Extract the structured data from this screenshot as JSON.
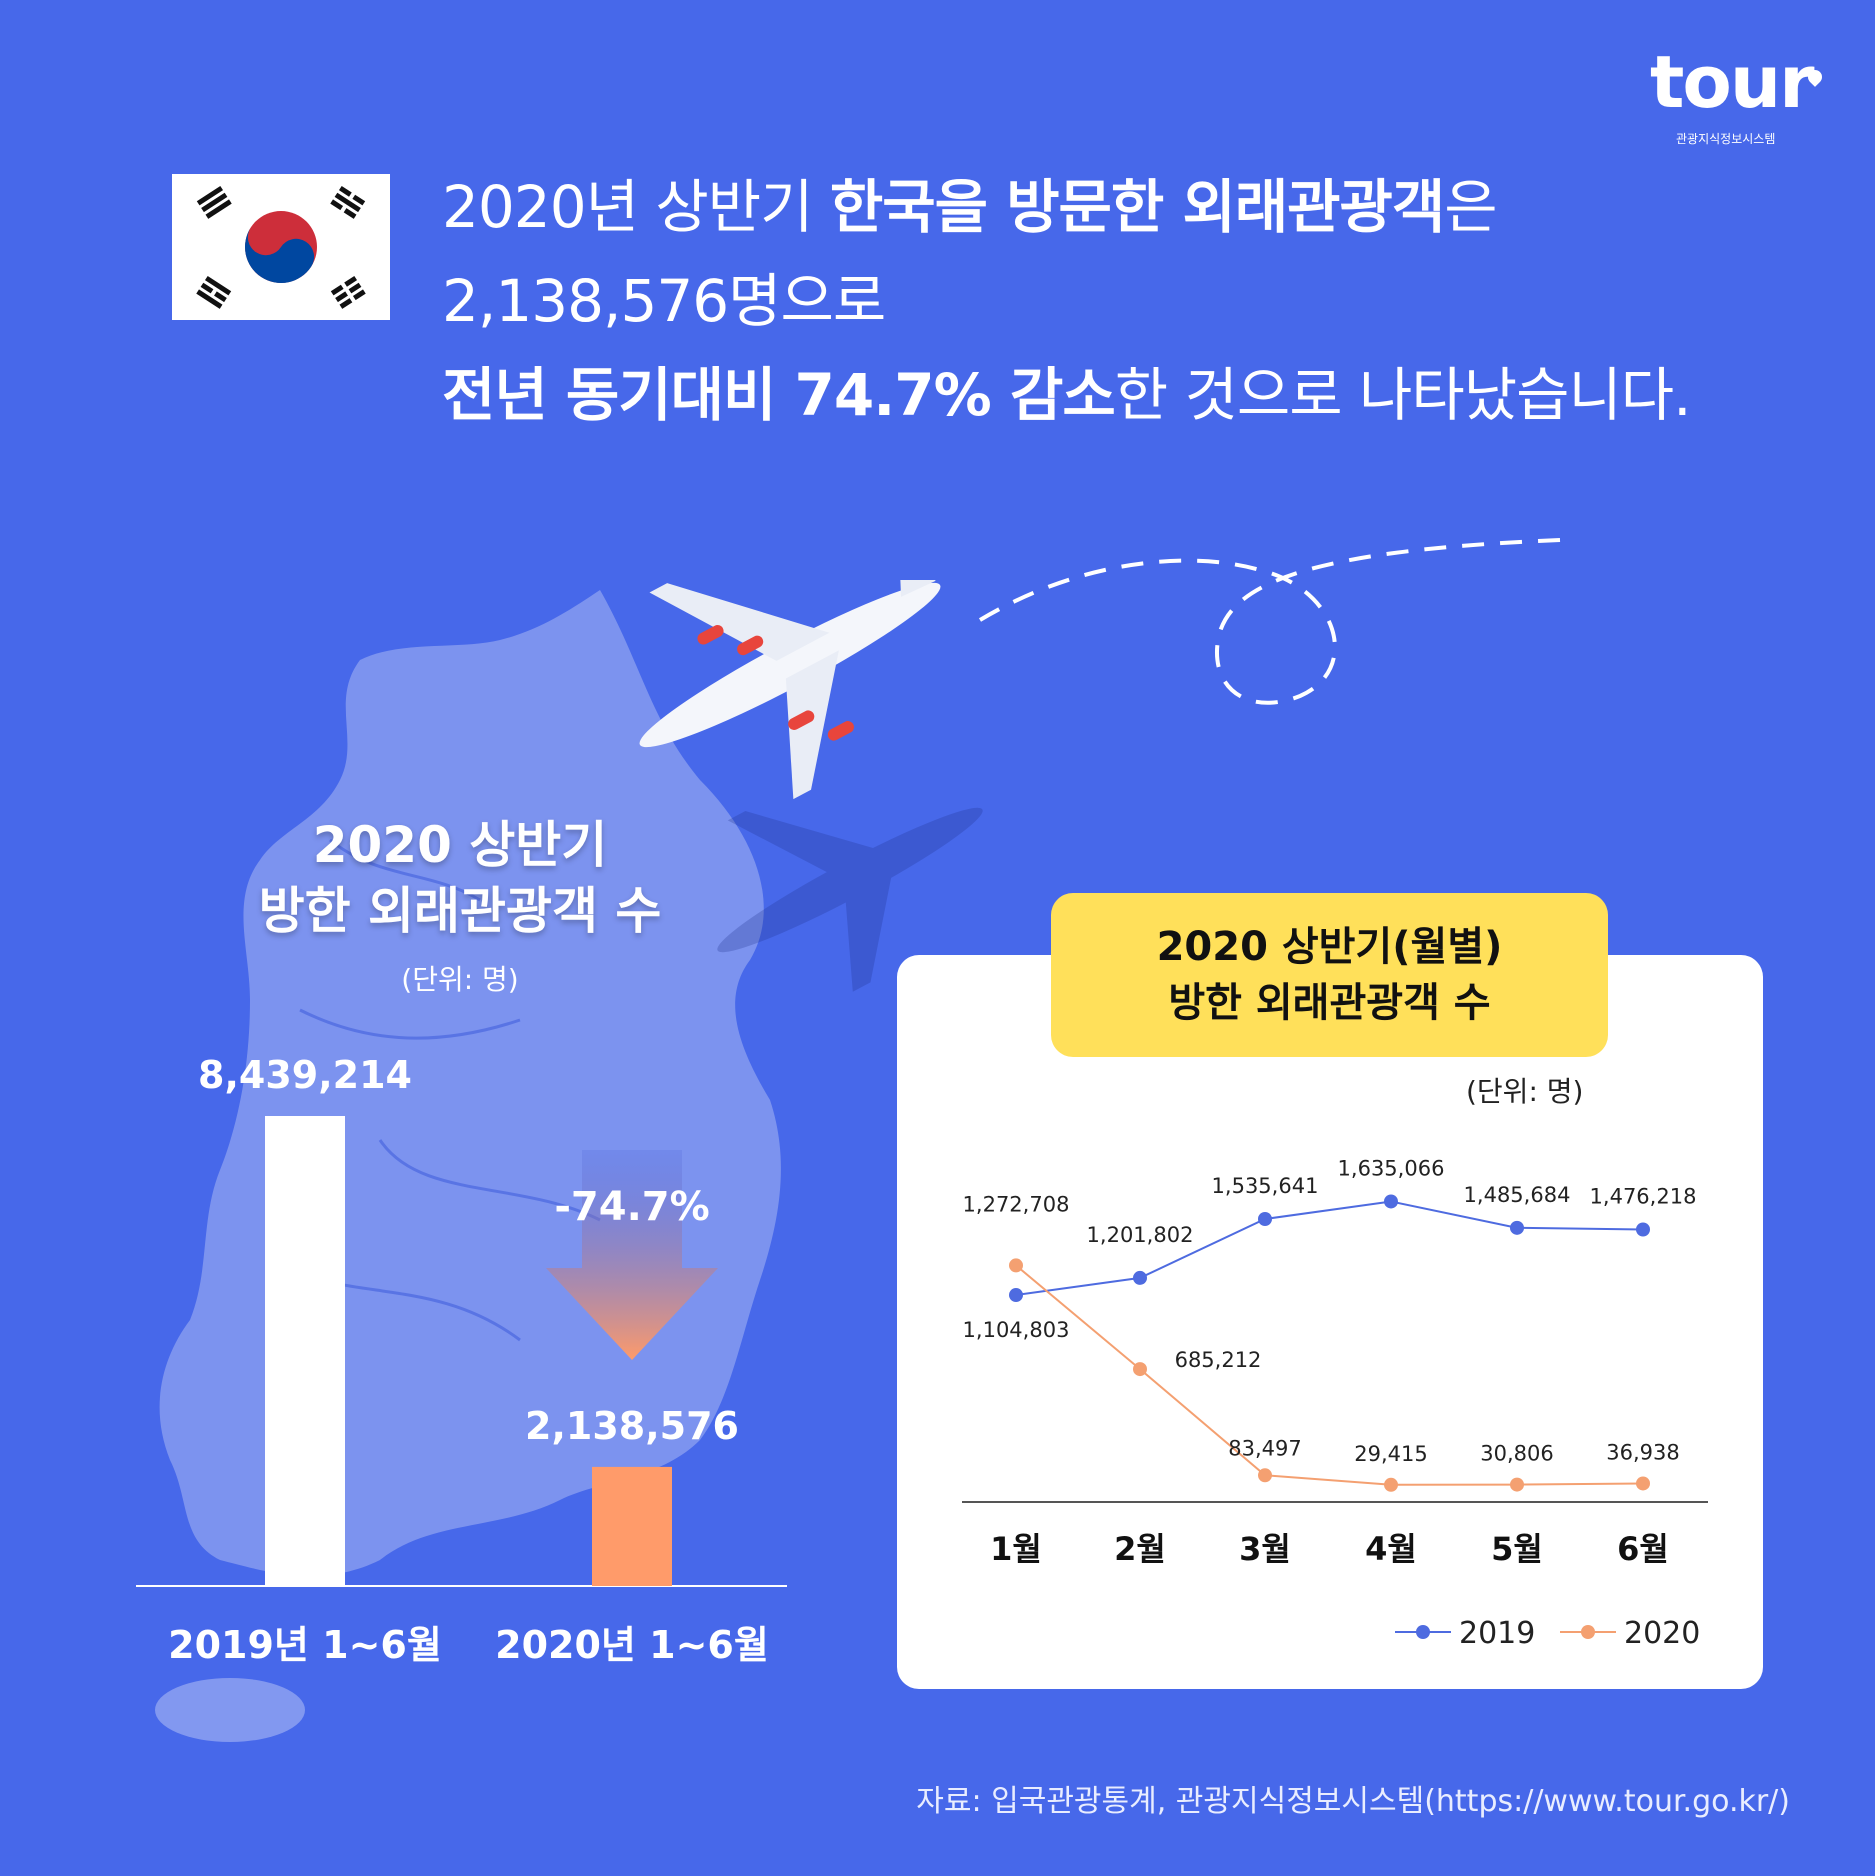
{
  "logo": {
    "word": "tour",
    "sub": "관광지식정보시스템"
  },
  "headline": {
    "line1_a": "2020년 상반기 ",
    "line1_b": "한국을 방문한 외래관광객",
    "line1_c": "은",
    "line2": "2,138,576명으로",
    "line3_a": "전년 동기대비 74.7% 감소",
    "line3_b": "한 것으로 나타났습니다."
  },
  "left_chart": {
    "title_line1": "2020 상반기",
    "title_line2": "방한 외래관광객 수",
    "unit": "(단위: 명)",
    "change_label": "-74.7%"
  },
  "right_chart": {
    "title_line1": "2020 상반기(월별)",
    "title_line2": "방한 외래관광객 수",
    "unit": "(단위: 명)"
  },
  "source": "자료: 입국관광통계, 관광지식정보시스템(https://www.tour.go.kr/)",
  "colors": {
    "background": "#4768ea",
    "series_2019": "#4e6be0",
    "series_2020": "#f4a071",
    "bar_2019": "#ffffff",
    "bar_2020": "#ff9b6a",
    "highlight": "#ffe05a"
  },
  "chart_data": [
    {
      "type": "bar",
      "categories": [
        "2019년 1~6월",
        "2020년 1~6월"
      ],
      "values": [
        8439214,
        2138576
      ],
      "value_labels": [
        "8,439,214",
        "2,138,576"
      ],
      "title": "2020 상반기 방한 외래관광객 수",
      "ylabel": "",
      "xlabel": ""
    },
    {
      "type": "line",
      "categories": [
        "1월",
        "2월",
        "3월",
        "4월",
        "5월",
        "6월"
      ],
      "series": [
        {
          "name": "2019",
          "values": [
            1104803,
            1201802,
            1535641,
            1635066,
            1485684,
            1476218
          ],
          "labels": [
            "1,104,803",
            "1,201,802",
            "1,535,641",
            "1,635,066",
            "1,485,684",
            "1,476,218"
          ]
        },
        {
          "name": "2020",
          "values": [
            1272708,
            685212,
            83497,
            29415,
            30806,
            36938
          ],
          "labels": [
            "1,272,708",
            "685,212",
            "83,497",
            "29,415",
            "30,806",
            "36,938"
          ]
        }
      ],
      "title": "2020 상반기(월별) 방한 외래관광객 수",
      "legend": "bottom-right",
      "grid": false
    }
  ]
}
